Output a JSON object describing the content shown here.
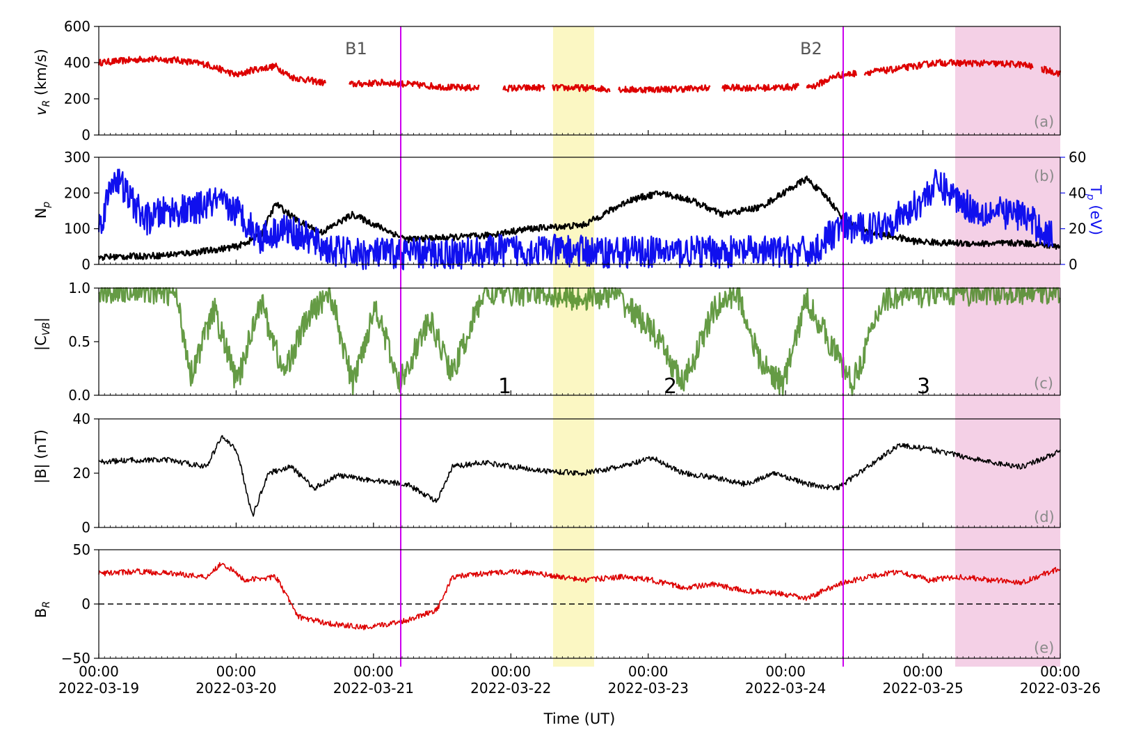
{
  "figure": {
    "time_axis": {
      "label": "Time (UT)",
      "ticks": [
        {
          "time": "00:00",
          "date": "2022-03-19"
        },
        {
          "time": "00:00",
          "date": "2022-03-20"
        },
        {
          "time": "00:00",
          "date": "2022-03-21"
        },
        {
          "time": "00:00",
          "date": "2022-03-22"
        },
        {
          "time": "00:00",
          "date": "2022-03-23"
        },
        {
          "time": "00:00",
          "date": "2022-03-24"
        },
        {
          "time": "00:00",
          "date": "2022-03-25"
        },
        {
          "time": "00:00",
          "date": "2022-03-26"
        }
      ]
    },
    "events": {
      "B1": "B1",
      "B2": "B2",
      "interval_1": "1",
      "interval_2": "2",
      "interval_3": "3"
    },
    "colors": {
      "red": "#dd0000",
      "blue": "#1010ee",
      "black": "#000000",
      "green": "#4a8a24",
      "magenta": "#cc00ee",
      "yellow_band": "#faf6b8",
      "pink_band": "#f2c8e2"
    }
  },
  "chart_data": [
    {
      "type": "scatter",
      "panel": "(a)",
      "ylabel": "v_R (km/s)",
      "ylim": [
        0,
        600
      ],
      "yticks": [
        "0",
        "200",
        "400",
        "600"
      ],
      "x_unit": "days since 2022-03-19 00:00",
      "series": [
        {
          "color": "red",
          "points": [
            [
              0,
              400
            ],
            [
              0.3,
              410
            ],
            [
              0.6,
              420
            ],
            [
              1.0,
              415
            ],
            [
              1.4,
              390
            ],
            [
              1.8,
              330
            ],
            [
              2.0,
              360
            ],
            [
              2.3,
              380
            ],
            [
              2.5,
              320
            ],
            [
              2.9,
              290
            ],
            [
              3.3,
              280
            ],
            [
              3.7,
              290
            ],
            [
              4.2,
              275
            ],
            [
              4.6,
              262
            ],
            [
              5.3,
              258
            ],
            [
              5.8,
              262
            ],
            [
              6.3,
              260
            ],
            [
              6.9,
              250
            ],
            [
              7.6,
              255
            ],
            [
              8.1,
              262
            ],
            [
              8.6,
              260
            ],
            [
              9.0,
              265
            ],
            [
              9.3,
              270
            ],
            [
              9.6,
              330
            ],
            [
              10.3,
              360
            ],
            [
              10.9,
              400
            ],
            [
              11.6,
              395
            ],
            [
              12.0,
              390
            ],
            [
              12.5,
              340
            ]
          ]
        }
      ],
      "gaps_days": [
        [
          2.95,
          3.25
        ],
        [
          4.95,
          5.25
        ],
        [
          5.8,
          5.9
        ],
        [
          6.65,
          6.75
        ],
        [
          7.95,
          8.1
        ],
        [
          9.1,
          9.2
        ],
        [
          9.85,
          9.95
        ],
        [
          12.15,
          12.25
        ]
      ]
    },
    {
      "type": "scatter",
      "panel": "(b)",
      "ylabel": "N_p",
      "ylim": [
        0,
        300
      ],
      "yticks": [
        "0",
        "100",
        "200",
        "300"
      ],
      "y2label": "T_p (eV)",
      "y2lim": [
        0,
        60
      ],
      "y2ticks": [
        "0",
        "20",
        "40",
        "60"
      ],
      "series": [
        {
          "color": "black",
          "axis": "left",
          "points": [
            [
              0,
              20
            ],
            [
              0.8,
              25
            ],
            [
              1.3,
              35
            ],
            [
              1.8,
              50
            ],
            [
              2.1,
              80
            ],
            [
              2.3,
              170
            ],
            [
              2.6,
              120
            ],
            [
              2.9,
              90
            ],
            [
              3.3,
              140
            ],
            [
              3.6,
              110
            ],
            [
              4.0,
              70
            ],
            [
              4.5,
              75
            ],
            [
              5.0,
              80
            ],
            [
              5.6,
              100
            ],
            [
              6.3,
              110
            ],
            [
              6.9,
              180
            ],
            [
              7.3,
              200
            ],
            [
              7.7,
              180
            ],
            [
              8.1,
              140
            ],
            [
              8.6,
              160
            ],
            [
              8.9,
              200
            ],
            [
              9.2,
              240
            ],
            [
              9.5,
              180
            ],
            [
              9.7,
              120
            ],
            [
              10.0,
              90
            ],
            [
              10.3,
              80
            ],
            [
              10.6,
              65
            ],
            [
              11.0,
              60
            ],
            [
              11.6,
              58
            ],
            [
              12.0,
              60
            ],
            [
              12.5,
              50
            ]
          ]
        },
        {
          "color": "blue",
          "axis": "right",
          "points": [
            [
              0,
              20
            ],
            [
              0.2,
              50
            ],
            [
              0.6,
              25
            ],
            [
              0.9,
              30
            ],
            [
              1.2,
              30
            ],
            [
              1.5,
              35
            ],
            [
              1.8,
              30
            ],
            [
              2.1,
              15
            ],
            [
              2.4,
              20
            ],
            [
              2.7,
              15
            ],
            [
              3.0,
              8
            ],
            [
              3.3,
              6
            ],
            [
              3.7,
              6
            ],
            [
              4.2,
              6
            ],
            [
              4.7,
              6
            ],
            [
              5.3,
              8
            ],
            [
              5.8,
              8
            ],
            [
              6.5,
              7
            ],
            [
              7.1,
              7
            ],
            [
              7.7,
              7
            ],
            [
              8.3,
              7
            ],
            [
              8.9,
              7
            ],
            [
              9.3,
              7
            ],
            [
              9.6,
              20
            ],
            [
              10.0,
              20
            ],
            [
              10.5,
              28
            ],
            [
              10.9,
              45
            ],
            [
              11.4,
              30
            ],
            [
              12.0,
              28
            ],
            [
              12.4,
              15
            ]
          ]
        }
      ]
    },
    {
      "type": "scatter",
      "panel": "(c)",
      "ylabel": "|C_VB|",
      "ylim": [
        0,
        1.0
      ],
      "yticks": [
        "0.0",
        "0.5",
        "1.0"
      ],
      "series": [
        {
          "color": "green",
          "points": [
            [
              0,
              0.97
            ],
            [
              0.5,
              0.99
            ],
            [
              1.0,
              0.95
            ],
            [
              1.2,
              0.2
            ],
            [
              1.5,
              0.8
            ],
            [
              1.8,
              0.1
            ],
            [
              2.1,
              0.9
            ],
            [
              2.4,
              0.2
            ],
            [
              2.7,
              0.7
            ],
            [
              3.0,
              0.98
            ],
            [
              3.3,
              0.1
            ],
            [
              3.6,
              0.85
            ],
            [
              3.9,
              0.1
            ],
            [
              4.3,
              0.7
            ],
            [
              4.6,
              0.2
            ],
            [
              5.0,
              0.95
            ],
            [
              5.8,
              0.96
            ],
            [
              6.2,
              0.9
            ],
            [
              6.7,
              0.95
            ],
            [
              7.2,
              0.6
            ],
            [
              7.6,
              0.1
            ],
            [
              8.0,
              0.8
            ],
            [
              8.3,
              0.97
            ],
            [
              8.6,
              0.3
            ],
            [
              8.9,
              0.1
            ],
            [
              9.2,
              0.9
            ],
            [
              9.5,
              0.5
            ],
            [
              9.8,
              0.1
            ],
            [
              10.2,
              0.9
            ],
            [
              10.8,
              0.95
            ],
            [
              11.5,
              0.96
            ],
            [
              12.0,
              0.97
            ],
            [
              12.5,
              0.98
            ]
          ]
        }
      ]
    },
    {
      "type": "line",
      "panel": "(d)",
      "ylabel": "|B| (nT)",
      "ylim": [
        0,
        50
      ],
      "yticks": [
        "0",
        "20",
        "40"
      ],
      "series": [
        {
          "color": "black",
          "points": [
            [
              0,
              30
            ],
            [
              0.4,
              31
            ],
            [
              0.9,
              31
            ],
            [
              1.4,
              28
            ],
            [
              1.6,
              42
            ],
            [
              1.8,
              35
            ],
            [
              2.0,
              5
            ],
            [
              2.2,
              25
            ],
            [
              2.5,
              28
            ],
            [
              2.8,
              18
            ],
            [
              3.1,
              24
            ],
            [
              3.5,
              22
            ],
            [
              4.0,
              20
            ],
            [
              4.4,
              12
            ],
            [
              4.6,
              28
            ],
            [
              5.0,
              30
            ],
            [
              5.4,
              28
            ],
            [
              5.8,
              26
            ],
            [
              6.3,
              25
            ],
            [
              6.8,
              28
            ],
            [
              7.2,
              32
            ],
            [
              7.6,
              25
            ],
            [
              8.0,
              23
            ],
            [
              8.4,
              20
            ],
            [
              8.8,
              25
            ],
            [
              9.2,
              20
            ],
            [
              9.6,
              18
            ],
            [
              10.0,
              28
            ],
            [
              10.4,
              38
            ],
            [
              10.8,
              36
            ],
            [
              11.2,
              33
            ],
            [
              11.6,
              30
            ],
            [
              12.0,
              28
            ],
            [
              12.5,
              35
            ]
          ]
        }
      ]
    },
    {
      "type": "line",
      "panel": "(e)",
      "ylabel": "B_R",
      "ylim": [
        -50,
        50
      ],
      "yticks": [
        "−50",
        "0",
        "50"
      ],
      "reference_line": 0,
      "xlabel": "Time (UT)",
      "series": [
        {
          "color": "red",
          "points": [
            [
              0,
              28
            ],
            [
              0.5,
              30
            ],
            [
              1.0,
              28
            ],
            [
              1.4,
              25
            ],
            [
              1.6,
              38
            ],
            [
              1.9,
              22
            ],
            [
              2.3,
              25
            ],
            [
              2.6,
              -12
            ],
            [
              3.0,
              -18
            ],
            [
              3.5,
              -22
            ],
            [
              4.0,
              -15
            ],
            [
              4.4,
              -5
            ],
            [
              4.6,
              25
            ],
            [
              5.0,
              28
            ],
            [
              5.4,
              30
            ],
            [
              5.8,
              27
            ],
            [
              6.3,
              22
            ],
            [
              6.8,
              25
            ],
            [
              7.2,
              22
            ],
            [
              7.6,
              15
            ],
            [
              8.0,
              18
            ],
            [
              8.4,
              12
            ],
            [
              8.8,
              10
            ],
            [
              9.2,
              5
            ],
            [
              9.6,
              18
            ],
            [
              10.0,
              25
            ],
            [
              10.4,
              30
            ],
            [
              10.8,
              22
            ],
            [
              11.2,
              25
            ],
            [
              11.6,
              22
            ],
            [
              12.0,
              20
            ],
            [
              12.5,
              33
            ]
          ]
        }
      ]
    }
  ]
}
